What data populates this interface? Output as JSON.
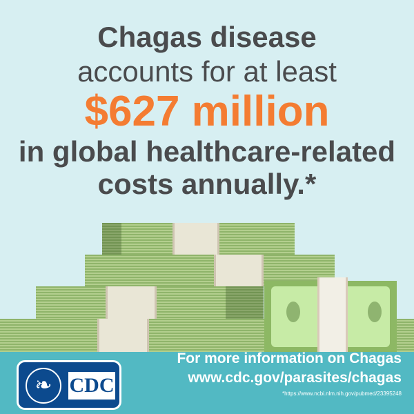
{
  "headline": {
    "line1": "Chagas disease",
    "line2": "accounts for at least",
    "amount": "$627 million",
    "line4": "in global healthcare-related",
    "line5": "costs annually.*"
  },
  "colors": {
    "background": "#d7eff2",
    "accent": "#f47c32",
    "text": "#4a4b4d",
    "footer": "#52b9c3",
    "logo": "#0c4a8e"
  },
  "footer": {
    "logo_text": "CDC",
    "cta": "For more information on Chagas",
    "url": "www.cdc.gov/parasites/chagas",
    "reference": "*https://www.ncbi.nlm.nih.gov/pubmed/23395248"
  }
}
